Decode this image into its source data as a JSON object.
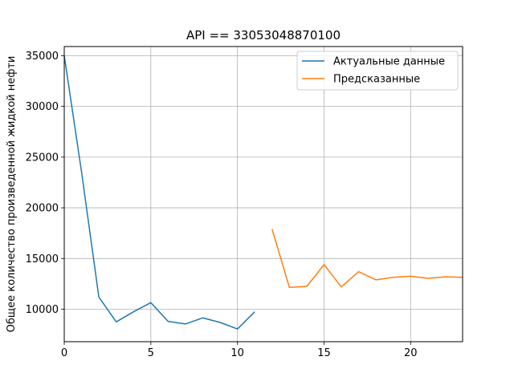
{
  "chart_data": {
    "type": "line",
    "title": "API == 33053048870100",
    "xlabel": "",
    "ylabel": "Общее количество произведенной жидкой нефти",
    "xlim": [
      0,
      23
    ],
    "ylim": [
      6800,
      35900
    ],
    "xticks": [
      0,
      5,
      10,
      15,
      20
    ],
    "yticks": [
      10000,
      15000,
      20000,
      25000,
      30000,
      35000
    ],
    "grid": true,
    "legend_position": "top-right",
    "series": [
      {
        "name": "Актуальные данные",
        "color": "#1f77b4",
        "x": [
          0,
          1,
          2,
          3,
          4,
          5,
          6,
          7,
          8,
          9,
          10,
          11
        ],
        "y": [
          35000,
          23500,
          11200,
          8750,
          9750,
          10650,
          8800,
          8550,
          9150,
          8700,
          8050,
          9750
        ]
      },
      {
        "name": "Предсказанные",
        "color": "#ff7f0e",
        "x": [
          12,
          13,
          14,
          15,
          16,
          17,
          18,
          19,
          20,
          21,
          22,
          23
        ],
        "y": [
          17900,
          12150,
          12250,
          14400,
          12200,
          13700,
          12900,
          13150,
          13250,
          13050,
          13200,
          13150
        ]
      }
    ]
  }
}
